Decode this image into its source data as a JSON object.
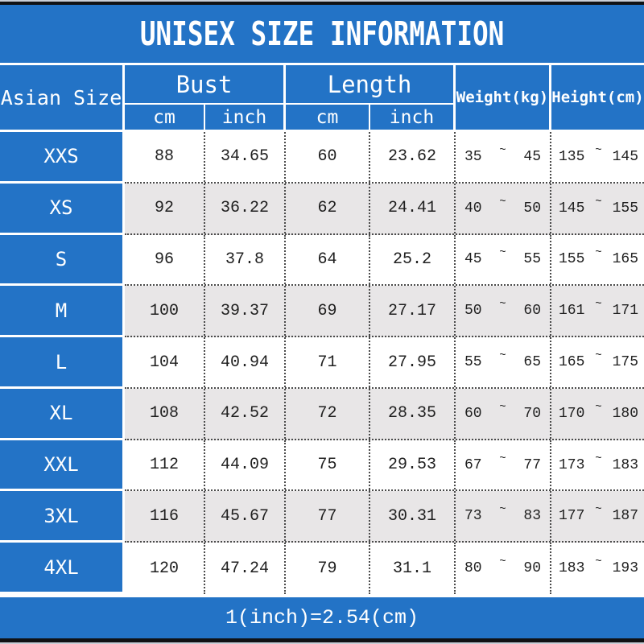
{
  "title": "UNISEX SIZE INFORMATION",
  "footer_note": "1(inch)=2.54(cm)",
  "colors": {
    "header_blue": "#2373c6",
    "row_alt_gray": "#e8e6e7",
    "row_white": "#ffffff",
    "text_white": "#ffffff",
    "text_dark": "#1f1f1f",
    "frame_black": "#101114"
  },
  "chart_data": {
    "type": "table",
    "title": "UNISEX SIZE INFORMATION",
    "footnote": "1(inch)=2.54(cm)",
    "tilde": "~",
    "header": {
      "size_col": "Asian Size",
      "groups": [
        {
          "label": "Bust",
          "sub": [
            "cm",
            "inch"
          ]
        },
        {
          "label": "Length",
          "sub": [
            "cm",
            "inch"
          ]
        }
      ],
      "singles": [
        "Weight(kg)",
        "Height(cm)"
      ]
    },
    "rows": [
      {
        "size": "XXS",
        "bust_cm": "88",
        "bust_inch": "34.65",
        "length_cm": "60",
        "length_inch": "23.62",
        "weight_min": "35",
        "weight_max": "45",
        "height_min": "135",
        "height_max": "145"
      },
      {
        "size": "XS",
        "bust_cm": "92",
        "bust_inch": "36.22",
        "length_cm": "62",
        "length_inch": "24.41",
        "weight_min": "40",
        "weight_max": "50",
        "height_min": "145",
        "height_max": "155"
      },
      {
        "size": "S",
        "bust_cm": "96",
        "bust_inch": "37.8",
        "length_cm": "64",
        "length_inch": "25.2",
        "weight_min": "45",
        "weight_max": "55",
        "height_min": "155",
        "height_max": "165"
      },
      {
        "size": "M",
        "bust_cm": "100",
        "bust_inch": "39.37",
        "length_cm": "69",
        "length_inch": "27.17",
        "weight_min": "50",
        "weight_max": "60",
        "height_min": "161",
        "height_max": "171"
      },
      {
        "size": "L",
        "bust_cm": "104",
        "bust_inch": "40.94",
        "length_cm": "71",
        "length_inch": "27.95",
        "weight_min": "55",
        "weight_max": "65",
        "height_min": "165",
        "height_max": "175"
      },
      {
        "size": "XL",
        "bust_cm": "108",
        "bust_inch": "42.52",
        "length_cm": "72",
        "length_inch": "28.35",
        "weight_min": "60",
        "weight_max": "70",
        "height_min": "170",
        "height_max": "180"
      },
      {
        "size": "XXL",
        "bust_cm": "112",
        "bust_inch": "44.09",
        "length_cm": "75",
        "length_inch": "29.53",
        "weight_min": "67",
        "weight_max": "77",
        "height_min": "173",
        "height_max": "183"
      },
      {
        "size": "3XL",
        "bust_cm": "116",
        "bust_inch": "45.67",
        "length_cm": "77",
        "length_inch": "30.31",
        "weight_min": "73",
        "weight_max": "83",
        "height_min": "177",
        "height_max": "187"
      },
      {
        "size": "4XL",
        "bust_cm": "120",
        "bust_inch": "47.24",
        "length_cm": "79",
        "length_inch": "31.1",
        "weight_min": "80",
        "weight_max": "90",
        "height_min": "183",
        "height_max": "193"
      }
    ]
  }
}
